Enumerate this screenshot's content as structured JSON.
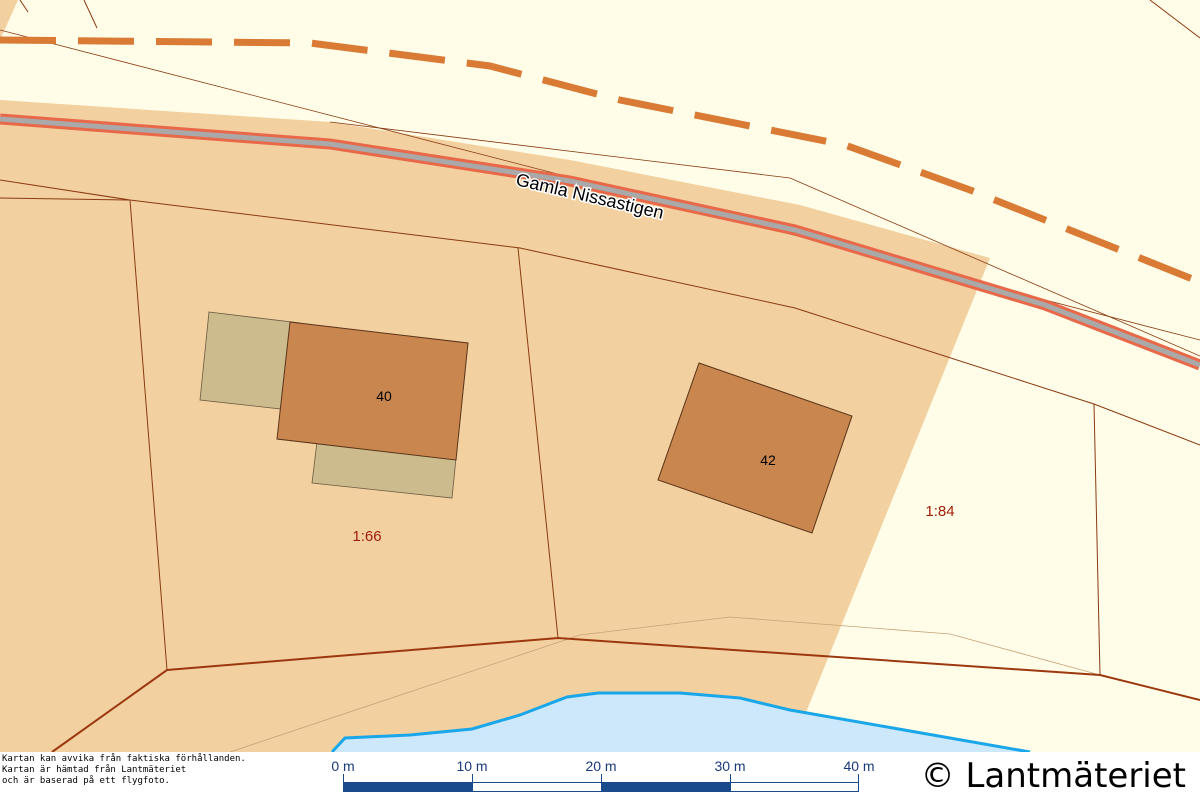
{
  "map": {
    "road_name": "Gamla Nissastigen",
    "house_numbers": [
      "40",
      "42"
    ],
    "parcels": [
      "1:66",
      "1:84"
    ],
    "colors": {
      "background": "#fffde8",
      "residential_area": "#f3d09f",
      "building": "#c9874f",
      "outbuilding": "#cbbb8d",
      "water": "#cce8fa",
      "water_edge": "#1aa7ea",
      "road_fill": "#a9a9a9",
      "road_edge": "#e8694a",
      "path_dashed": "#d97a35",
      "property_line": "#8a3a12",
      "parcel_label": "#a01e0a"
    }
  },
  "footer": {
    "disclaimer": [
      "Kartan kan avvika från faktiska förhållanden.",
      "Kartan är hämtad från Lantmäteriet",
      "och är baserad på ett flygfoto."
    ],
    "scale_labels": [
      "0 m",
      "10 m",
      "20 m",
      "30 m",
      "40 m"
    ],
    "copyright": "© Lantmäteriet"
  }
}
